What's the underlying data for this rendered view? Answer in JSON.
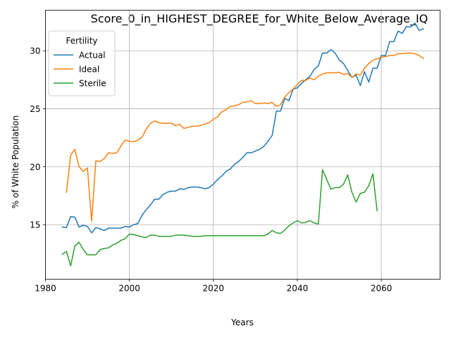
{
  "chart_data": {
    "type": "line",
    "title": "Score_0_in_HIGHEST_DEGREE_for_White_Below_Average_IQ",
    "xlabel": "Years",
    "ylabel": "% of White Population",
    "xlim": [
      1980,
      2074
    ],
    "ylim": [
      10.3,
      33.5
    ],
    "xticks": [
      1980,
      2000,
      2020,
      2040,
      2060
    ],
    "yticks": [
      15,
      20,
      25,
      30
    ],
    "grid": true,
    "legend": {
      "title": "Fertility",
      "placement": "top-left"
    },
    "series": [
      {
        "name": "Actual",
        "color": "#1f77b4",
        "x": [
          1984,
          1985,
          1986,
          1987,
          1988,
          1989,
          1990,
          1991,
          1992,
          1993,
          1994,
          1995,
          1996,
          1997,
          1998,
          1999,
          2000,
          2001,
          2002,
          2003,
          2004,
          2005,
          2006,
          2007,
          2008,
          2009,
          2010,
          2011,
          2012,
          2013,
          2014,
          2015,
          2016,
          2017,
          2018,
          2019,
          2020,
          2021,
          2022,
          2023,
          2024,
          2025,
          2026,
          2027,
          2028,
          2029,
          2030,
          2031,
          2032,
          2033,
          2034,
          2035,
          2036,
          2037,
          2038,
          2039,
          2040,
          2041,
          2042,
          2043,
          2044,
          2045,
          2046,
          2047,
          2048,
          2049,
          2050,
          2051,
          2052,
          2053,
          2054,
          2055,
          2056,
          2057,
          2058,
          2059,
          2060,
          2061,
          2062,
          2063,
          2064,
          2065,
          2066,
          2067,
          2068,
          2069,
          2070
        ],
        "values": [
          14.8,
          14.75,
          15.7,
          15.65,
          14.8,
          14.95,
          14.85,
          14.3,
          14.75,
          14.65,
          14.5,
          14.7,
          14.7,
          14.7,
          14.7,
          14.85,
          14.8,
          15.0,
          15.1,
          15.8,
          16.3,
          16.7,
          17.2,
          17.2,
          17.6,
          17.8,
          17.9,
          17.9,
          18.1,
          18.05,
          18.2,
          18.25,
          18.25,
          18.2,
          18.1,
          18.2,
          18.5,
          18.9,
          19.2,
          19.6,
          19.8,
          20.2,
          20.45,
          20.8,
          21.2,
          21.2,
          21.35,
          21.5,
          21.75,
          22.2,
          22.7,
          24.8,
          24.8,
          25.9,
          25.7,
          26.7,
          26.8,
          27.2,
          27.5,
          27.8,
          28.4,
          28.7,
          29.8,
          29.8,
          30.1,
          29.8,
          29.2,
          28.9,
          28.3,
          27.7,
          27.9,
          27.0,
          28.2,
          27.3,
          28.5,
          28.5,
          29.6,
          29.6,
          30.8,
          30.8,
          31.7,
          31.5,
          32.1,
          32.05,
          32.4,
          31.75,
          31.9
        ]
      },
      {
        "name": "Ideal",
        "color": "#ff7f0e",
        "x": [
          1985,
          1986,
          1987,
          1988,
          1989,
          1990,
          1991,
          1992,
          1993,
          1994,
          1995,
          1996,
          1997,
          1998,
          1999,
          2000,
          2001,
          2002,
          2003,
          2004,
          2005,
          2006,
          2007,
          2008,
          2009,
          2010,
          2011,
          2012,
          2013,
          2014,
          2015,
          2016,
          2017,
          2018,
          2019,
          2020,
          2021,
          2022,
          2023,
          2024,
          2025,
          2026,
          2027,
          2028,
          2029,
          2030,
          2031,
          2032,
          2033,
          2034,
          2035,
          2036,
          2037,
          2038,
          2039,
          2040,
          2041,
          2042,
          2043,
          2044,
          2045,
          2046,
          2047,
          2048,
          2049,
          2050,
          2051,
          2052,
          2053,
          2054,
          2055,
          2056,
          2057,
          2058,
          2059,
          2060,
          2061,
          2062,
          2063,
          2064,
          2065,
          2066,
          2067,
          2068,
          2069,
          2070
        ],
        "values": [
          17.8,
          21.0,
          21.5,
          20.0,
          19.6,
          19.9,
          15.3,
          20.5,
          20.45,
          20.7,
          21.2,
          21.15,
          21.2,
          21.8,
          22.3,
          22.2,
          22.15,
          22.3,
          22.55,
          23.25,
          23.75,
          23.95,
          23.8,
          23.75,
          23.75,
          23.75,
          23.55,
          23.65,
          23.3,
          23.4,
          23.5,
          23.5,
          23.55,
          23.7,
          23.8,
          24.1,
          24.3,
          24.75,
          24.9,
          25.2,
          25.25,
          25.35,
          25.55,
          25.6,
          25.7,
          25.45,
          25.45,
          25.5,
          25.45,
          25.55,
          25.2,
          25.35,
          26.0,
          26.4,
          26.7,
          27.1,
          27.45,
          27.45,
          27.65,
          27.5,
          27.8,
          28.0,
          28.1,
          28.1,
          28.1,
          28.15,
          27.95,
          28.05,
          27.7,
          28.0,
          27.9,
          28.5,
          28.9,
          29.2,
          29.3,
          29.45,
          29.5,
          29.6,
          29.6,
          29.75,
          29.75,
          29.8,
          29.8,
          29.75,
          29.6,
          29.35
        ]
      },
      {
        "name": "Sterile",
        "color": "#2ca02c",
        "x": [
          1984,
          1985,
          1986,
          1987,
          1988,
          1989,
          1990,
          1991,
          1992,
          1993,
          1994,
          1995,
          1996,
          1997,
          1998,
          1999,
          2000,
          2001,
          2002,
          2003,
          2004,
          2005,
          2006,
          2007,
          2008,
          2009,
          2010,
          2011,
          2012,
          2013,
          2014,
          2015,
          2016,
          2017,
          2018,
          2019,
          2020,
          2021,
          2022,
          2023,
          2024,
          2025,
          2026,
          2027,
          2028,
          2029,
          2030,
          2031,
          2032,
          2033,
          2034,
          2035,
          2036,
          2037,
          2038,
          2039,
          2040,
          2041,
          2042,
          2043,
          2044,
          2045,
          2046,
          2047,
          2048,
          2049,
          2050,
          2051,
          2052,
          2053,
          2054,
          2055,
          2056,
          2057,
          2058,
          2059
        ],
        "values": [
          12.45,
          12.7,
          11.45,
          13.15,
          13.5,
          12.85,
          12.4,
          12.4,
          12.4,
          12.85,
          12.95,
          13.0,
          13.25,
          13.4,
          13.65,
          13.8,
          14.2,
          14.15,
          14.05,
          13.95,
          13.9,
          14.1,
          14.1,
          14.0,
          14.0,
          14.0,
          14.0,
          14.1,
          14.1,
          14.1,
          14.05,
          14.0,
          14.0,
          14.0,
          14.05,
          14.05,
          14.05,
          14.05,
          14.05,
          14.05,
          14.05,
          14.05,
          14.05,
          14.05,
          14.05,
          14.05,
          14.05,
          14.05,
          14.05,
          14.2,
          14.5,
          14.3,
          14.25,
          14.55,
          14.9,
          15.15,
          15.35,
          15.15,
          15.2,
          15.35,
          15.15,
          15.05,
          19.75,
          18.9,
          18.05,
          18.2,
          18.2,
          18.5,
          19.3,
          17.8,
          16.95,
          17.7,
          17.8,
          18.35,
          19.4,
          16.2
        ]
      }
    ]
  }
}
